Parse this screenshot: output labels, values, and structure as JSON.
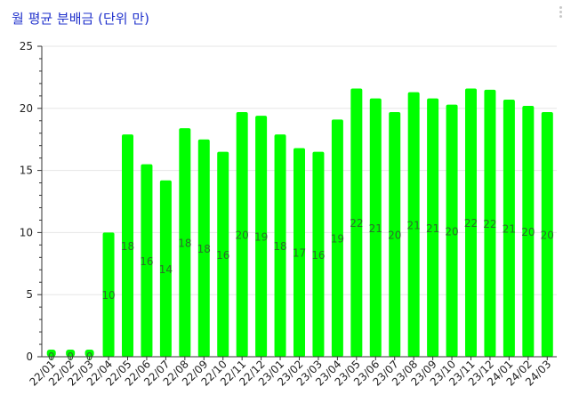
{
  "colors": {
    "bar": "#00ff00",
    "title": "#2233cc",
    "grid": "#e6e6e6",
    "axis": "#333333",
    "label": "#2d6e2d"
  },
  "icons": {
    "menu": "vertical-dots-icon"
  },
  "chart_data": {
    "type": "bar",
    "title": "월 평균 분배금 (단위 만)",
    "xlabel": "",
    "ylabel": "",
    "ylim": [
      0,
      25
    ],
    "yticks": [
      "0",
      "5",
      "10",
      "15",
      "20",
      "25"
    ],
    "grid": true,
    "legend": "none",
    "categories": [
      "22/01",
      "22/02",
      "22/03",
      "22/04",
      "22/05",
      "22/06",
      "22/07",
      "22/08",
      "22/09",
      "22/10",
      "22/11",
      "22/12",
      "23/01",
      "23/02",
      "23/03",
      "23/04",
      "23/05",
      "23/06",
      "23/07",
      "23/08",
      "23/09",
      "23/10",
      "23/11",
      "23/12",
      "24/01",
      "24/02",
      "24/03"
    ],
    "values": [
      0,
      0,
      0,
      10,
      17.9,
      15.5,
      14.2,
      18.4,
      17.5,
      16.5,
      19.7,
      19.4,
      17.9,
      16.8,
      16.5,
      19.1,
      21.6,
      20.8,
      19.7,
      21.3,
      20.8,
      20.3,
      21.6,
      21.5,
      20.7,
      20.2,
      19.7
    ],
    "data_labels": [
      "0",
      "0",
      "0",
      "10",
      "18",
      "16",
      "14",
      "18",
      "18",
      "16",
      "20",
      "19",
      "18",
      "17",
      "16",
      "19",
      "22",
      "21",
      "20",
      "21",
      "21",
      "20",
      "22",
      "22",
      "21",
      "20",
      "20"
    ]
  }
}
